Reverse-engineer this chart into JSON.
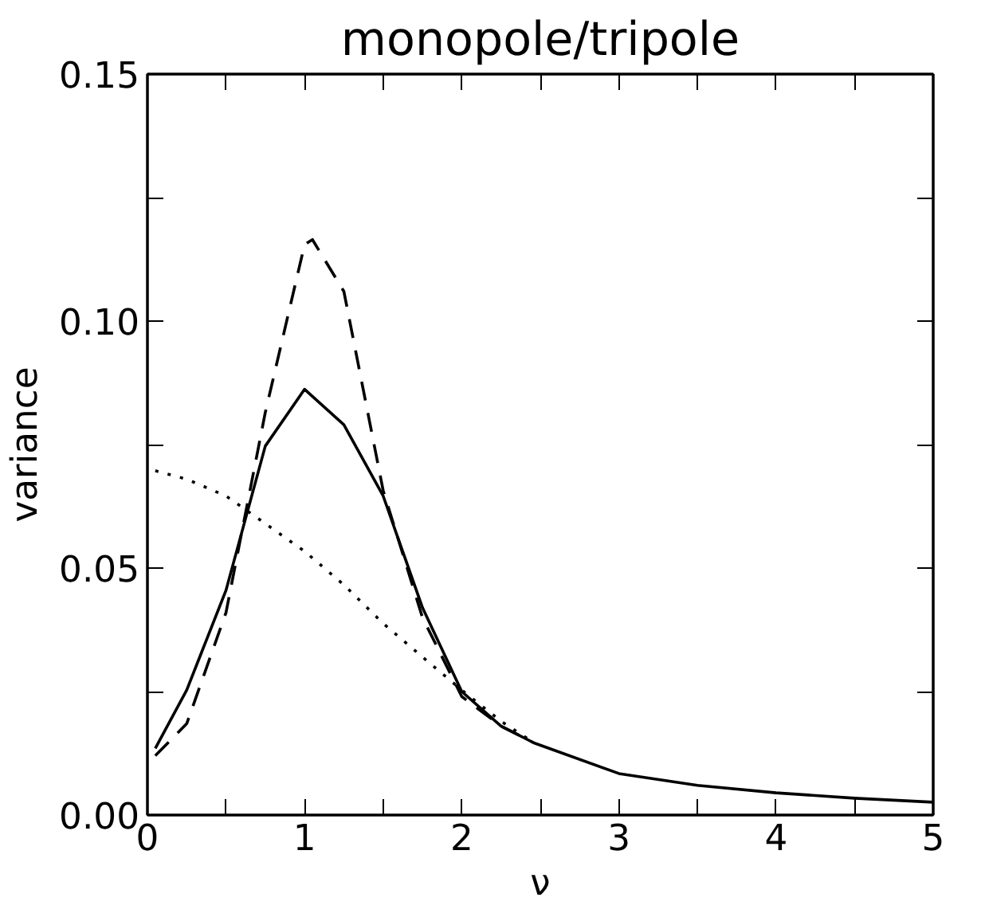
{
  "chart_data": {
    "type": "line",
    "title": "monopole/tripole",
    "xlabel": "ν",
    "ylabel": "variance",
    "xlim": [
      0,
      5
    ],
    "ylim": [
      0,
      0.15
    ],
    "xticks": [
      0,
      {
        "value": 0.5,
        "label": null
      },
      1,
      {
        "value": 1.5,
        "label": null
      },
      2,
      {
        "value": 2.5,
        "label": null
      },
      3,
      {
        "value": 3.5,
        "label": null
      },
      4,
      {
        "value": 4.5,
        "label": null
      },
      5
    ],
    "yticks": [
      {
        "value": 0,
        "label": "0.00"
      },
      {
        "value": 0.025,
        "label": null
      },
      {
        "value": 0.05,
        "label": "0.05"
      },
      {
        "value": 0.075,
        "label": null
      },
      {
        "value": 0.1,
        "label": "0.10"
      },
      {
        "value": 0.125,
        "label": null
      },
      {
        "value": 0.15,
        "label": "0.15"
      }
    ],
    "grid": false,
    "marker": "none",
    "series": [
      {
        "color": "#000000",
        "line_style": "solid",
        "x": [
          0.05,
          0.25,
          0.5,
          0.75,
          1,
          1.25,
          1.5,
          1.75,
          2,
          2.25,
          2.46,
          3,
          3.5,
          4,
          4.5,
          5
        ],
        "values": [
          0.0135,
          0.0253,
          0.0455,
          0.0747,
          0.0862,
          0.079,
          0.0646,
          0.042,
          0.025,
          0.018,
          0.0146,
          0.0084,
          0.006,
          0.0045,
          0.0034,
          0.0026
        ]
      },
      {
        "color": "#000000",
        "line_style": "dashed",
        "x": [
          0.05,
          0.25,
          0.5,
          0.75,
          1,
          1.05,
          1.25,
          1.5,
          1.75,
          2,
          2.25,
          2.46
        ],
        "values": [
          0.012,
          0.0185,
          0.041,
          0.0815,
          0.1155,
          0.1165,
          0.106,
          0.0657,
          0.04,
          0.024,
          0.018,
          0.0146
        ]
      },
      {
        "color": "#000000",
        "line_style": "dotted",
        "x": [
          0.05,
          0.25,
          0.5,
          0.75,
          1,
          1.25,
          1.5,
          1.75,
          2,
          2.25,
          2.46
        ],
        "values": [
          0.0697,
          0.068,
          0.0646,
          0.059,
          0.0534,
          0.0466,
          0.0388,
          0.032,
          0.0253,
          0.019,
          0.0146
        ]
      }
    ]
  }
}
